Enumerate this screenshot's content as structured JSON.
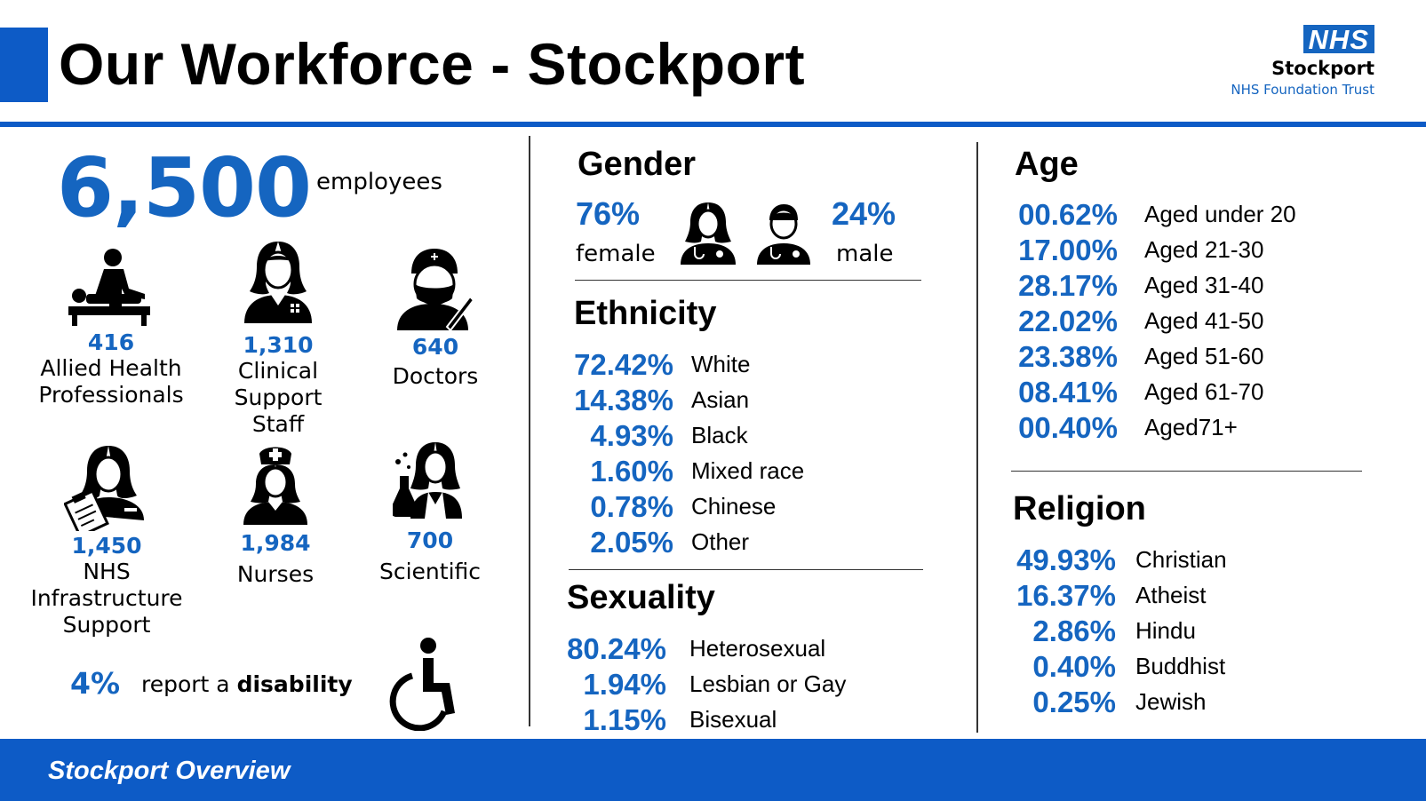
{
  "header": {
    "title": "Our Workforce - Stockport",
    "logo": {
      "badge": "NHS",
      "name": "Stockport",
      "trust": "NHS Foundation Trust"
    }
  },
  "workforce": {
    "total": "6,500",
    "total_label": "employees",
    "staff_groups": [
      {
        "count": "416",
        "label_lines": [
          "Allied Health",
          "Professionals"
        ],
        "icon": "physiotherapy-icon"
      },
      {
        "count": "1,310",
        "label_lines": [
          "Clinical",
          "Support",
          "Staff"
        ],
        "icon": "female-support-worker-icon"
      },
      {
        "count": "640",
        "label_lines": [
          "Doctors"
        ],
        "icon": "surgeon-icon"
      },
      {
        "count": "1,450",
        "label_lines": [
          "NHS",
          "Infrastructure",
          "Support"
        ],
        "icon": "clipboard-worker-icon"
      },
      {
        "count": "1,984",
        "label_lines": [
          "Nurses"
        ],
        "icon": "nurse-icon"
      },
      {
        "count": "700",
        "label_lines": [
          "Scientific"
        ],
        "icon": "scientist-icon"
      }
    ],
    "disability": {
      "pct": "4%",
      "text_prefix": "report a ",
      "text_bold": "disability",
      "icon": "wheelchair-icon"
    }
  },
  "gender": {
    "heading": "Gender",
    "female": {
      "pct": "76%",
      "label": "female"
    },
    "male": {
      "pct": "24%",
      "label": "male"
    }
  },
  "ethnicity": {
    "heading": "Ethnicity",
    "rows": [
      {
        "pct": "72.42%",
        "label": "White"
      },
      {
        "pct": "14.38%",
        "label": "Asian"
      },
      {
        "pct": "4.93%",
        "label": "Black"
      },
      {
        "pct": "1.60%",
        "label": "Mixed race"
      },
      {
        "pct": "0.78%",
        "label": "Chinese"
      },
      {
        "pct": "2.05%",
        "label": "Other"
      }
    ]
  },
  "sexuality": {
    "heading": "Sexuality",
    "rows": [
      {
        "pct": "80.24%",
        "label": "Heterosexual"
      },
      {
        "pct": "1.94%",
        "label": "Lesbian or Gay"
      },
      {
        "pct": "1.15%",
        "label": "Bisexual"
      }
    ]
  },
  "age": {
    "heading": "Age",
    "rows": [
      {
        "pct": "00.62%",
        "label": "Aged under 20"
      },
      {
        "pct": "17.00%",
        "label": "Aged 21-30"
      },
      {
        "pct": "28.17%",
        "label": "Aged 31-40"
      },
      {
        "pct": "22.02%",
        "label": "Aged 41-50"
      },
      {
        "pct": "23.38%",
        "label": "Aged 51-60"
      },
      {
        "pct": "08.41%",
        "label": "Aged 61-70"
      },
      {
        "pct": "00.40%",
        "label": "Aged71+"
      }
    ]
  },
  "religion": {
    "heading": "Religion",
    "rows": [
      {
        "pct": "49.93%",
        "label": "Christian"
      },
      {
        "pct": "16.37%",
        "label": "Atheist"
      },
      {
        "pct": "2.86%",
        "label": "Hindu"
      },
      {
        "pct": "0.40%",
        "label": "Buddhist"
      },
      {
        "pct": "0.25%",
        "label": "Jewish"
      }
    ]
  },
  "footer": {
    "text": "Stockport Overview"
  },
  "colors": {
    "accent": "#0d5bc6",
    "stat_blue": "#1565c0"
  }
}
